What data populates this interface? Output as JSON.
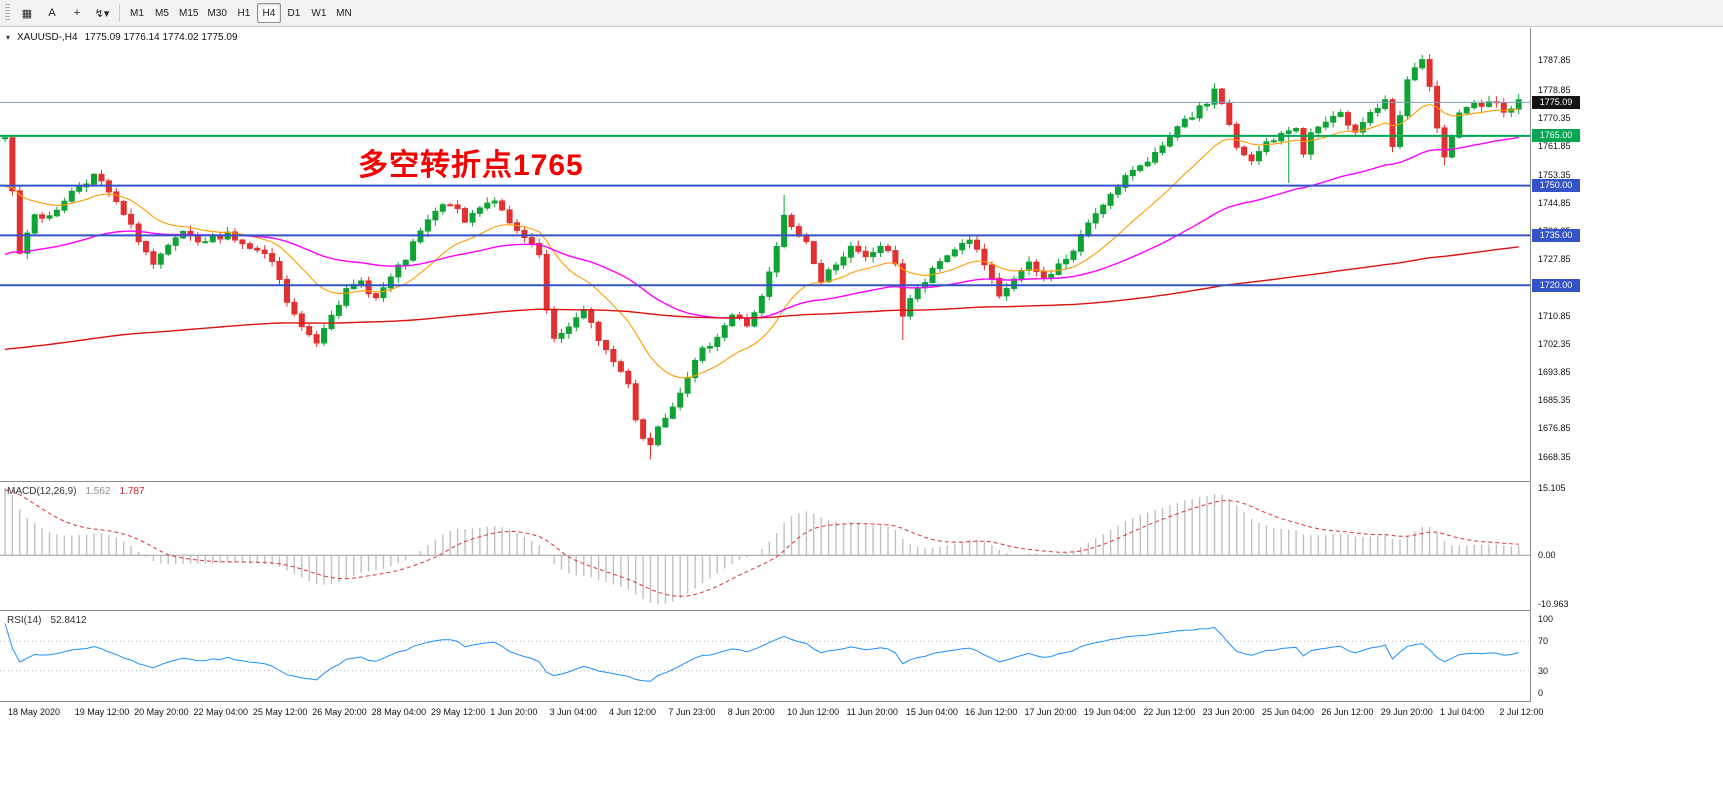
{
  "toolbar": {
    "tools": [
      {
        "id": "new-chart",
        "glyph": "▦"
      },
      {
        "id": "text-label",
        "glyph": "A"
      },
      {
        "id": "crosshair",
        "glyph": "+"
      },
      {
        "id": "cursor-mode",
        "glyph": "↯",
        "dropdown": "▾"
      }
    ],
    "timeframes": [
      "M1",
      "M5",
      "M15",
      "M30",
      "H1",
      "H4",
      "D1",
      "W1",
      "MN"
    ],
    "active_timeframe": "H4"
  },
  "header": {
    "dropdown_icon": "▾",
    "title": "XAUUSD-,H4",
    "ohlc": "1775.09 1776.14 1774.02 1775.09"
  },
  "annotation": {
    "text": "多空转折点1765",
    "color": "#f40000"
  },
  "price_axis": {
    "ticks": [
      "1787.85",
      "1778.85",
      "1770.35",
      "1761.85",
      "1753.35",
      "1744.85",
      "1736.35",
      "1727.85",
      "1719.35",
      "1710.85",
      "1702.35",
      "1693.85",
      "1685.35",
      "1676.85",
      "1668.35"
    ]
  },
  "levels": [
    {
      "label": "1775.09",
      "price": 1775.09,
      "box": "#141414",
      "line": "#7d9ec7",
      "width": 1
    },
    {
      "label": "1765.00",
      "price": 1765.0,
      "box": "#00a651",
      "line": "#00a651",
      "width": 2
    },
    {
      "label": "1750.00",
      "price": 1750.0,
      "box": "#3353c6",
      "line": "#3353c6",
      "width": 2
    },
    {
      "label": "1735.00",
      "price": 1735.0,
      "box": "#3353c6",
      "line": "#3353c6",
      "width": 2
    },
    {
      "label": "1720.00",
      "price": 1720.0,
      "box": "#3353c6",
      "line": "#3353c6",
      "width": 2
    }
  ],
  "time_axis": [
    {
      "label": "18 May 2020",
      "bar": 0
    },
    {
      "label": "19 May 12:00",
      "bar": 9
    },
    {
      "label": "20 May 20:00",
      "bar": 17
    },
    {
      "label": "22 May 04:00",
      "bar": 25
    },
    {
      "label": "25 May 12:00",
      "bar": 33
    },
    {
      "label": "26 May 20:00",
      "bar": 41
    },
    {
      "label": "28 May 04:00",
      "bar": 49
    },
    {
      "label": "29 May 12:00",
      "bar": 57
    },
    {
      "label": "1 Jun 20:00",
      "bar": 65
    },
    {
      "label": "3 Jun 04:00",
      "bar": 73
    },
    {
      "label": "4 Jun 12:00",
      "bar": 81
    },
    {
      "label": "7 Jun 23:00",
      "bar": 89
    },
    {
      "label": "8 Jun 20:00",
      "bar": 97
    },
    {
      "label": "10 Jun 12:00",
      "bar": 105
    },
    {
      "label": "11 Jun 20:00",
      "bar": 113
    },
    {
      "label": "15 Jun 04:00",
      "bar": 121
    },
    {
      "label": "16 Jun 12:00",
      "bar": 129
    },
    {
      "label": "17 Jun 20:00",
      "bar": 137
    },
    {
      "label": "19 Jun 04:00",
      "bar": 145
    },
    {
      "label": "22 Jun 12:00",
      "bar": 153
    },
    {
      "label": "23 Jun 20:00",
      "bar": 161
    },
    {
      "label": "25 Jun 04:00",
      "bar": 169
    },
    {
      "label": "26 Jun 12:00",
      "bar": 177
    },
    {
      "label": "29 Jun 20:00",
      "bar": 185
    },
    {
      "label": "1 Jul 04:00",
      "bar": 193
    },
    {
      "label": "2 Jul 12:00",
      "bar": 201
    }
  ],
  "indicators": {
    "macd": {
      "name": "MACD(12,26,9)",
      "main_value": "1.562",
      "signal_value": "1.787",
      "scale": [
        "15.105",
        "0.00",
        "-10.963"
      ]
    },
    "rsi": {
      "name": "RSI(14)",
      "value": "52.8412",
      "scale": [
        "100",
        "70",
        "30",
        "0"
      ]
    }
  },
  "chart_data": {
    "type": "candlestick",
    "symbol": "XAUUSD",
    "timeframe": "H4",
    "quote": {
      "open": 1775.09,
      "high": 1776.14,
      "low": 1774.02,
      "close": 1775.09
    },
    "price_range": [
      1661.0,
      1797.5
    ],
    "visible_bars": 205,
    "pre_history": {
      "bars": 48,
      "start_price": 1672
    },
    "noise_seed": 7,
    "close_anchors": [
      [
        0,
        1764
      ],
      [
        1,
        1748
      ],
      [
        2,
        1730
      ],
      [
        3,
        1736
      ],
      [
        4,
        1742
      ],
      [
        6,
        1740
      ],
      [
        8,
        1746
      ],
      [
        10,
        1750
      ],
      [
        12,
        1753
      ],
      [
        14,
        1748
      ],
      [
        16,
        1741
      ],
      [
        18,
        1734
      ],
      [
        20,
        1726
      ],
      [
        22,
        1731
      ],
      [
        24,
        1736
      ],
      [
        26,
        1732
      ],
      [
        28,
        1734
      ],
      [
        30,
        1736
      ],
      [
        32,
        1732
      ],
      [
        34,
        1730
      ],
      [
        36,
        1727
      ],
      [
        38,
        1715
      ],
      [
        40,
        1707
      ],
      [
        42,
        1703
      ],
      [
        44,
        1712
      ],
      [
        46,
        1718
      ],
      [
        48,
        1721
      ],
      [
        50,
        1716
      ],
      [
        52,
        1722
      ],
      [
        54,
        1728
      ],
      [
        56,
        1736
      ],
      [
        58,
        1742
      ],
      [
        60,
        1745
      ],
      [
        62,
        1739
      ],
      [
        64,
        1744
      ],
      [
        66,
        1746
      ],
      [
        68,
        1738
      ],
      [
        70,
        1734
      ],
      [
        72,
        1729
      ],
      [
        73,
        1712
      ],
      [
        74,
        1703
      ],
      [
        76,
        1708
      ],
      [
        78,
        1712
      ],
      [
        80,
        1704
      ],
      [
        82,
        1697
      ],
      [
        84,
        1691
      ],
      [
        85,
        1680
      ],
      [
        86,
        1674
      ],
      [
        87,
        1672
      ],
      [
        88,
        1678
      ],
      [
        90,
        1684
      ],
      [
        92,
        1693
      ],
      [
        94,
        1700
      ],
      [
        96,
        1705
      ],
      [
        98,
        1711
      ],
      [
        100,
        1708
      ],
      [
        102,
        1716
      ],
      [
        104,
        1731
      ],
      [
        105,
        1741
      ],
      [
        106,
        1737
      ],
      [
        108,
        1733
      ],
      [
        110,
        1721
      ],
      [
        112,
        1727
      ],
      [
        114,
        1731
      ],
      [
        116,
        1728
      ],
      [
        118,
        1732
      ],
      [
        120,
        1727
      ],
      [
        121,
        1711
      ],
      [
        122,
        1716
      ],
      [
        124,
        1721
      ],
      [
        126,
        1727
      ],
      [
        128,
        1731
      ],
      [
        130,
        1734
      ],
      [
        132,
        1726
      ],
      [
        134,
        1716
      ],
      [
        136,
        1722
      ],
      [
        138,
        1726
      ],
      [
        140,
        1722
      ],
      [
        142,
        1726
      ],
      [
        144,
        1730
      ],
      [
        146,
        1739
      ],
      [
        148,
        1745
      ],
      [
        150,
        1749
      ],
      [
        152,
        1755
      ],
      [
        154,
        1758
      ],
      [
        156,
        1761
      ],
      [
        158,
        1767
      ],
      [
        160,
        1771
      ],
      [
        162,
        1775
      ],
      [
        163,
        1779
      ],
      [
        164,
        1775
      ],
      [
        166,
        1761
      ],
      [
        168,
        1757
      ],
      [
        170,
        1763
      ],
      [
        172,
        1765
      ],
      [
        174,
        1768
      ],
      [
        175,
        1759
      ],
      [
        176,
        1766
      ],
      [
        178,
        1769
      ],
      [
        180,
        1771
      ],
      [
        182,
        1767
      ],
      [
        184,
        1772
      ],
      [
        186,
        1775
      ],
      [
        187,
        1761
      ],
      [
        188,
        1771
      ],
      [
        189,
        1781
      ],
      [
        190,
        1786
      ],
      [
        191,
        1788
      ],
      [
        192,
        1779
      ],
      [
        193,
        1767
      ],
      [
        194,
        1758
      ],
      [
        195,
        1765
      ],
      [
        196,
        1771
      ],
      [
        198,
        1774
      ],
      [
        200,
        1776
      ],
      [
        202,
        1773
      ],
      [
        204,
        1775
      ]
    ],
    "wick_overrides": {
      "87": {
        "low": 1667.5
      },
      "105": {
        "high": 1747.2
      },
      "121": {
        "low": 1703.5
      },
      "163": {
        "high": 1780.9
      },
      "173": {
        "low": 1750.8
      },
      "191": {
        "high": 1789.4
      },
      "194": {
        "low": 1756.2
      }
    },
    "up_color": "#0fa336",
    "down_color": "#e23131",
    "moving_averages": [
      {
        "period": 16,
        "color": "#ff9c00",
        "width": 1.1,
        "init": null
      },
      {
        "period": 55,
        "color": "#ff00ff",
        "width": 1.4,
        "init": 1720
      },
      {
        "period": 300,
        "color": "#dd1111",
        "width": 1.4,
        "init": 1693
      }
    ],
    "macd": {
      "fast": 12,
      "slow": 26,
      "signal": 9,
      "histogram_color": "#c0c0c0",
      "signal_color": "#e23131",
      "display_max": 15.105,
      "display_min": -10.963
    },
    "rsi": {
      "period": 14,
      "color": "#1e90ff",
      "levels": [
        70,
        30
      ]
    }
  }
}
